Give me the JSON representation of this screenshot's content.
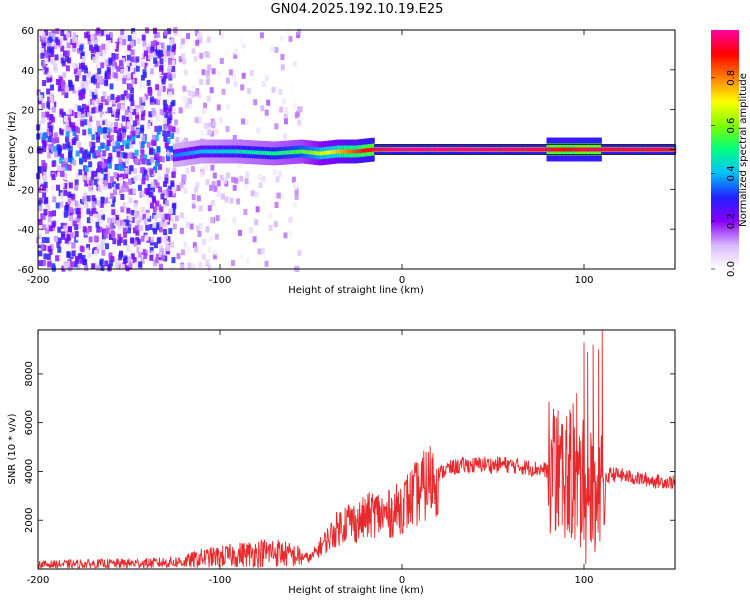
{
  "title": "GN04.2025.192.10.19.E25",
  "chart_data": [
    {
      "type": "heatmap",
      "xlabel": "Height of straight line (km)",
      "ylabel": "Frequency (Hz)",
      "xlim": [
        -200,
        150
      ],
      "ylim": [
        -60,
        60
      ],
      "x_ticks": [
        -200,
        -100,
        0,
        100
      ],
      "y_ticks": [
        60,
        40,
        20,
        0,
        -20,
        -40,
        -60
      ],
      "colorbar": {
        "label": "Normalized spectral amplitude",
        "range": [
          0,
          1
        ],
        "ticks": [
          0.0,
          0.2,
          0.4,
          0.6,
          0.8
        ],
        "colors": [
          "#ffffff",
          "#d8b8ff",
          "#8800ff",
          "#2020ff",
          "#00c0ff",
          "#00ff80",
          "#80ff00",
          "#ffff00",
          "#ff8000",
          "#ff0000",
          "#ff00a0"
        ]
      },
      "ridge": {
        "x": [
          -125,
          -110,
          -90,
          -70,
          -55,
          -45,
          -35,
          -25,
          -15,
          0,
          50,
          80,
          90,
          100,
          108,
          150
        ],
        "frequency": [
          -3,
          -1,
          -1,
          -2,
          -1,
          -2,
          -1,
          -1,
          0,
          0,
          0,
          0,
          0,
          0,
          0,
          0
        ],
        "amplitude": [
          0.35,
          0.4,
          0.45,
          0.5,
          0.55,
          0.65,
          0.75,
          0.85,
          0.95,
          1.0,
          0.98,
          0.95,
          0.9,
          0.95,
          0.95,
          0.95
        ]
      },
      "grid": false
    },
    {
      "type": "line",
      "xlabel": "Height of straight line (km)",
      "ylabel": "SNR (10 * v/v)",
      "xlim": [
        -200,
        150
      ],
      "ylim": [
        0,
        9800
      ],
      "x_ticks": [
        -200,
        -100,
        0,
        100
      ],
      "y_ticks": [
        2000,
        4000,
        6000,
        8000
      ],
      "series": [
        {
          "color": "#e8282a",
          "x": [
            -200,
            -180,
            -160,
            -140,
            -130,
            -120,
            -110,
            -100,
            -90,
            -80,
            -70,
            -60,
            -50,
            -45,
            -40,
            -35,
            -30,
            -25,
            -20,
            -15,
            -10,
            -5,
            0,
            5,
            10,
            15,
            20,
            25,
            30,
            35,
            40,
            45,
            50,
            55,
            60,
            65,
            70,
            75,
            80,
            85,
            90,
            95,
            100,
            105,
            110,
            115,
            120,
            130,
            140,
            150
          ],
          "y": [
            180,
            200,
            220,
            240,
            260,
            300,
            450,
            500,
            580,
            650,
            700,
            550,
            450,
            900,
            1300,
            1700,
            2000,
            1900,
            2100,
            2300,
            2200,
            2300,
            2600,
            2900,
            3200,
            3600,
            3900,
            4100,
            4200,
            4250,
            4250,
            4300,
            4250,
            4300,
            4250,
            4200,
            4150,
            4100,
            4050,
            4100,
            3900,
            3800,
            3600,
            3400,
            3500,
            3900,
            3850,
            3700,
            3600,
            3550
          ],
          "spike_x": [
            85,
            88,
            90,
            92,
            94,
            95,
            96,
            98,
            100,
            101,
            102,
            104,
            105,
            106,
            108,
            110
          ],
          "spike_y": [
            6200,
            1800,
            5700,
            1500,
            6800,
            1200,
            7200,
            900,
            9300,
            200,
            8900,
            1100,
            9200,
            700,
            9000,
            9800
          ]
        }
      ],
      "grid": false
    }
  ]
}
